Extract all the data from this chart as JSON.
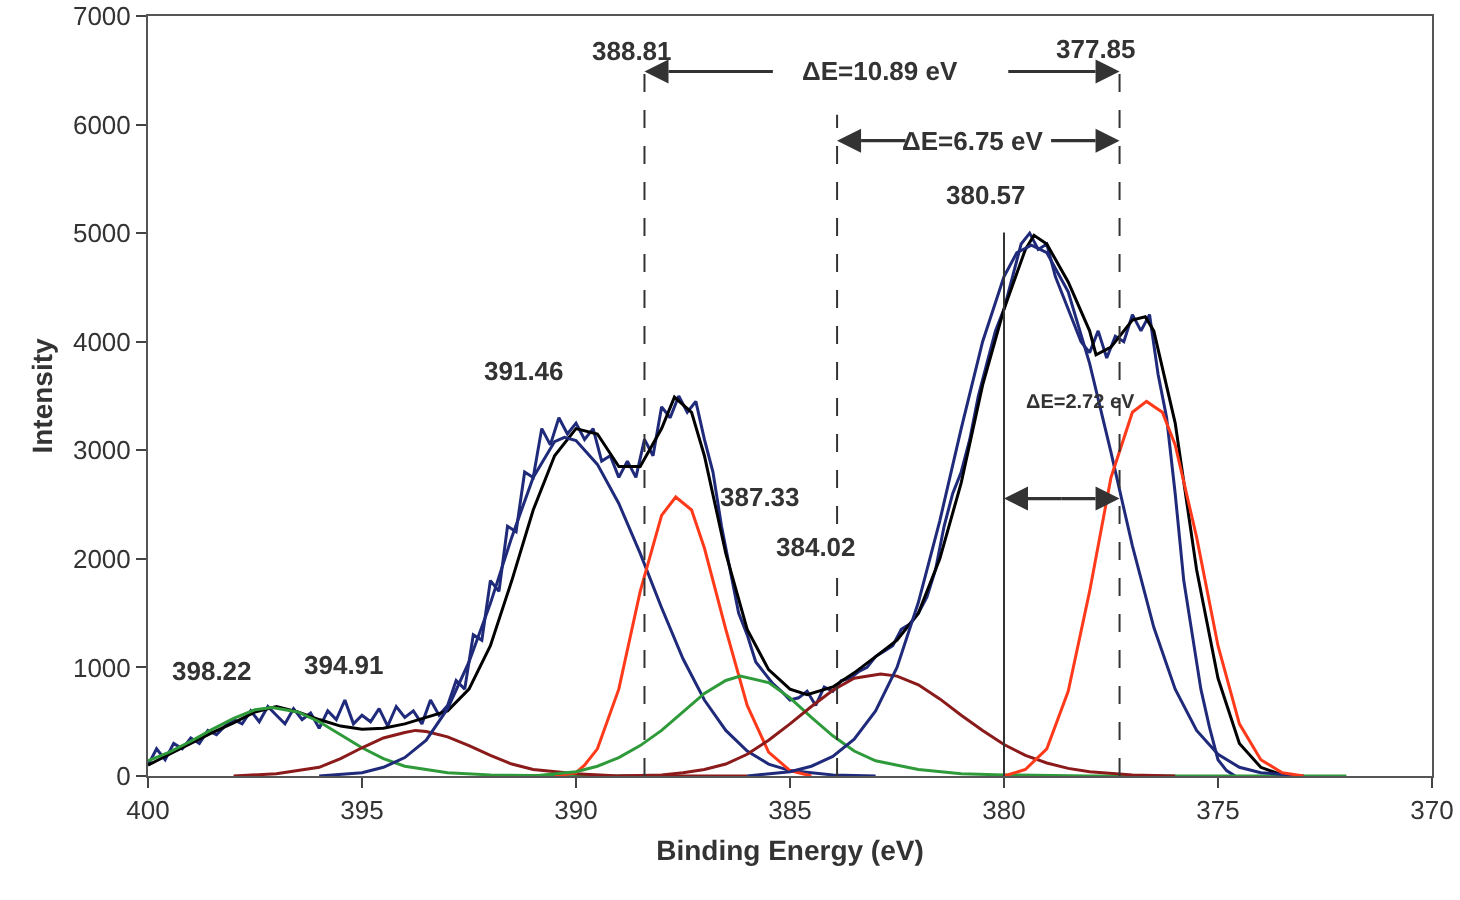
{
  "chart_data": {
    "type": "line",
    "xlabel": "Binding Energy (eV)",
    "ylabel": "Intensity",
    "xlim": [
      400,
      370
    ],
    "xticks": [
      400,
      395,
      390,
      385,
      380,
      375,
      370
    ],
    "ylim": [
      0,
      7000
    ],
    "yticks": [
      0,
      1000,
      2000,
      3000,
      4000,
      5000,
      6000,
      7000
    ],
    "grid": false,
    "marker": "none",
    "line_style": "solid",
    "series": [
      {
        "color": "#1f2a7a",
        "x": [
          400,
          399.8,
          399.6,
          399.4,
          399.2,
          399,
          398.8,
          398.6,
          398.4,
          398.2,
          398,
          397.8,
          397.6,
          397.4,
          397.2,
          397,
          396.8,
          396.6,
          396.4,
          396.2,
          396,
          395.8,
          395.6,
          395.4,
          395.2,
          395,
          394.8,
          394.6,
          394.4,
          394.2,
          394,
          393.8,
          393.6,
          393.4,
          393.2,
          393,
          392.8,
          392.6,
          392.4,
          392.2,
          392,
          391.8,
          391.6,
          391.4,
          391.2,
          391,
          390.8,
          390.6,
          390.4,
          390.2,
          390,
          389.8,
          389.6,
          389.4,
          389.2,
          389,
          388.8,
          388.6,
          388.4,
          388.2,
          388,
          387.8,
          387.6,
          387.4,
          387.2,
          387,
          386.8,
          386.6,
          386.4,
          386.2,
          386,
          385.8,
          385.6,
          385.4,
          385.2,
          385,
          384.8,
          384.6,
          384.4,
          384.2,
          384,
          383.8,
          383.6,
          383.4,
          383.2,
          383,
          382.8,
          382.6,
          382.4,
          382.2,
          382,
          381.8,
          381.6,
          381.4,
          381.2,
          381,
          380.8,
          380.6,
          380.4,
          380.2,
          380,
          379.8,
          379.6,
          379.4,
          379.2,
          379,
          378.8,
          378.6,
          378.4,
          378.2,
          378,
          377.8,
          377.6,
          377.4,
          377.2,
          377,
          376.8,
          376.6,
          376.4,
          376.2,
          376,
          375.8,
          375.6,
          375.4,
          375.2,
          375,
          374.8,
          374.6
        ],
        "values": [
          100,
          250,
          150,
          300,
          250,
          350,
          300,
          420,
          380,
          460,
          520,
          480,
          600,
          500,
          640,
          560,
          480,
          620,
          520,
          580,
          440,
          600,
          520,
          700,
          480,
          560,
          500,
          620,
          460,
          640,
          540,
          600,
          480,
          700,
          560,
          650,
          880,
          800,
          1300,
          1250,
          1800,
          1700,
          2300,
          2250,
          2800,
          2750,
          3200,
          3050,
          3300,
          3150,
          3250,
          3100,
          3200,
          2900,
          2950,
          2750,
          2900,
          2750,
          3100,
          2950,
          3400,
          3300,
          3500,
          3350,
          3450,
          3100,
          2800,
          2300,
          1900,
          1500,
          1300,
          1050,
          950,
          850,
          780,
          700,
          720,
          780,
          650,
          820,
          780,
          880,
          900,
          960,
          1000,
          1100,
          1150,
          1200,
          1350,
          1400,
          1500,
          1650,
          1900,
          2300,
          2600,
          2800,
          3100,
          3500,
          3800,
          4100,
          4300,
          4600,
          4900,
          5000,
          4850,
          4900,
          4600,
          4400,
          4200,
          4000,
          3900,
          4100,
          3850,
          4050,
          4000,
          4250,
          4100,
          4250,
          3700,
          3300,
          2600,
          1800,
          1300,
          800,
          450,
          150,
          50,
          0
        ]
      },
      {
        "color": "#000000",
        "x": [
          400,
          399.5,
          399,
          398.5,
          398,
          397.5,
          397,
          396.5,
          396,
          395.5,
          395,
          394.5,
          394,
          393.5,
          393,
          392.5,
          392,
          391.5,
          391,
          390.5,
          390,
          389.5,
          389,
          388.5,
          388,
          387.7,
          387.3,
          387,
          386.5,
          386,
          385.5,
          385,
          384.6,
          384,
          383.5,
          383,
          382.5,
          382,
          381.5,
          381,
          380.5,
          380,
          379.5,
          379.3,
          379,
          378.5,
          378,
          377.85,
          377.5,
          377,
          376.7,
          376.5,
          376,
          375.5,
          375,
          374.5,
          374,
          373.5
        ],
        "values": [
          100,
          200,
          300,
          400,
          490,
          590,
          640,
          590,
          520,
          460,
          430,
          440,
          480,
          540,
          600,
          800,
          1200,
          1800,
          2450,
          2950,
          3200,
          3150,
          2850,
          2850,
          3200,
          3490,
          3350,
          2950,
          2050,
          1350,
          980,
          800,
          750,
          820,
          950,
          1100,
          1250,
          1500,
          2000,
          2700,
          3600,
          4300,
          4850,
          4980,
          4900,
          4550,
          4100,
          3880,
          3950,
          4200,
          4230,
          4100,
          3250,
          1900,
          900,
          300,
          80,
          10
        ]
      },
      {
        "color": "#2e9a3a",
        "x": [
          400,
          399.5,
          399,
          398.5,
          398,
          397.5,
          397.1,
          396.5,
          396,
          395.5,
          395,
          394.5,
          394,
          393,
          392,
          390,
          388
        ],
        "values": [
          140,
          220,
          320,
          430,
          530,
          610,
          630,
          590,
          500,
          380,
          260,
          160,
          90,
          30,
          10,
          0,
          0
        ]
      },
      {
        "color": "#8b1a1a",
        "x": [
          398,
          397,
          396,
          395.5,
          395,
          394.5,
          394,
          393.75,
          393.5,
          393,
          392.5,
          392,
          391.5,
          391,
          390,
          389,
          388,
          386
        ],
        "values": [
          0,
          20,
          80,
          160,
          260,
          350,
          400,
          420,
          410,
          360,
          280,
          190,
          110,
          60,
          20,
          0,
          0,
          0
        ]
      },
      {
        "color": "#1f2a7a",
        "x": [
          396,
          395,
          394.5,
          394,
          393.5,
          393,
          392.5,
          392,
          391.5,
          391,
          390.5,
          390.27,
          390,
          389.5,
          389,
          388.5,
          388,
          387.5,
          387,
          386.5,
          386,
          385.5,
          385,
          384,
          383
        ],
        "values": [
          0,
          30,
          80,
          170,
          330,
          620,
          1050,
          1590,
          2200,
          2750,
          3080,
          3120,
          3090,
          2870,
          2510,
          2050,
          1550,
          1080,
          700,
          420,
          230,
          110,
          50,
          10,
          0
        ]
      },
      {
        "color": "#ff3a1a",
        "x": [
          390.5,
          390,
          389.8,
          389.5,
          389,
          388.5,
          388,
          387.67,
          387.3,
          387,
          386.5,
          386,
          385.5,
          385,
          384.5
        ],
        "values": [
          0,
          30,
          100,
          250,
          800,
          1700,
          2400,
          2570,
          2450,
          2100,
          1350,
          650,
          220,
          50,
          0
        ]
      },
      {
        "color": "#2e9a3a",
        "x": [
          391,
          390,
          389.5,
          389,
          388.5,
          388,
          387.5,
          387,
          386.5,
          386.16,
          385.5,
          385,
          384.5,
          384,
          383.5,
          383,
          382,
          381,
          380,
          378,
          375,
          372
        ],
        "values": [
          0,
          40,
          90,
          170,
          280,
          420,
          590,
          760,
          880,
          920,
          860,
          720,
          540,
          370,
          230,
          140,
          60,
          20,
          10,
          0,
          0,
          0
        ]
      },
      {
        "color": "#8b1a1a",
        "x": [
          389,
          388,
          387.5,
          387,
          386.5,
          386,
          385.5,
          385,
          384.5,
          384,
          383.5,
          382.88,
          382.5,
          382,
          381.5,
          381,
          380.5,
          380,
          379.5,
          379,
          378.5,
          378,
          377,
          376
        ],
        "values": [
          0,
          10,
          30,
          60,
          110,
          200,
          330,
          480,
          640,
          790,
          900,
          940,
          920,
          840,
          710,
          560,
          420,
          290,
          190,
          120,
          70,
          40,
          10,
          0
        ]
      },
      {
        "color": "#1f2a7a",
        "x": [
          386,
          385,
          384.5,
          384,
          383.5,
          383,
          382.5,
          382,
          381.5,
          381,
          380.5,
          380,
          379.7,
          379.36,
          379,
          378.5,
          378,
          377.5,
          377,
          376.5,
          376,
          375.5,
          375,
          374.5,
          374,
          373
        ],
        "values": [
          0,
          40,
          90,
          180,
          340,
          600,
          1000,
          1600,
          2350,
          3200,
          4000,
          4600,
          4820,
          4890,
          4820,
          4460,
          3800,
          2980,
          2120,
          1370,
          800,
          420,
          200,
          80,
          30,
          0
        ]
      },
      {
        "color": "#ff3a1a",
        "x": [
          380,
          379.5,
          379,
          378.5,
          378,
          377.5,
          377,
          376.67,
          376.3,
          376,
          375.5,
          375,
          374.5,
          374,
          373.5,
          373
        ],
        "values": [
          0,
          60,
          250,
          780,
          1700,
          2750,
          3350,
          3450,
          3350,
          3050,
          2200,
          1200,
          480,
          150,
          30,
          0
        ]
      }
    ],
    "ref_lines": [
      {
        "axis": "x",
        "value": 388.4,
        "line_style": "dashed",
        "color": "#333333"
      },
      {
        "axis": "x",
        "value": 383.9,
        "line_style": "dashed",
        "color": "#333333"
      },
      {
        "axis": "x",
        "value": 377.3,
        "line_style": "dashed",
        "color": "#333333"
      },
      {
        "axis": "x",
        "value": 380,
        "line_style": "solid",
        "color": "#333333"
      }
    ],
    "annotations": [
      "388.81",
      "377.85",
      "ΔE=10.89 eV",
      "ΔE=6.75 eV",
      "380.57",
      "ΔE=2.72 eV",
      "391.46",
      "387.33",
      "384.02",
      "398.22",
      "394.91"
    ]
  }
}
